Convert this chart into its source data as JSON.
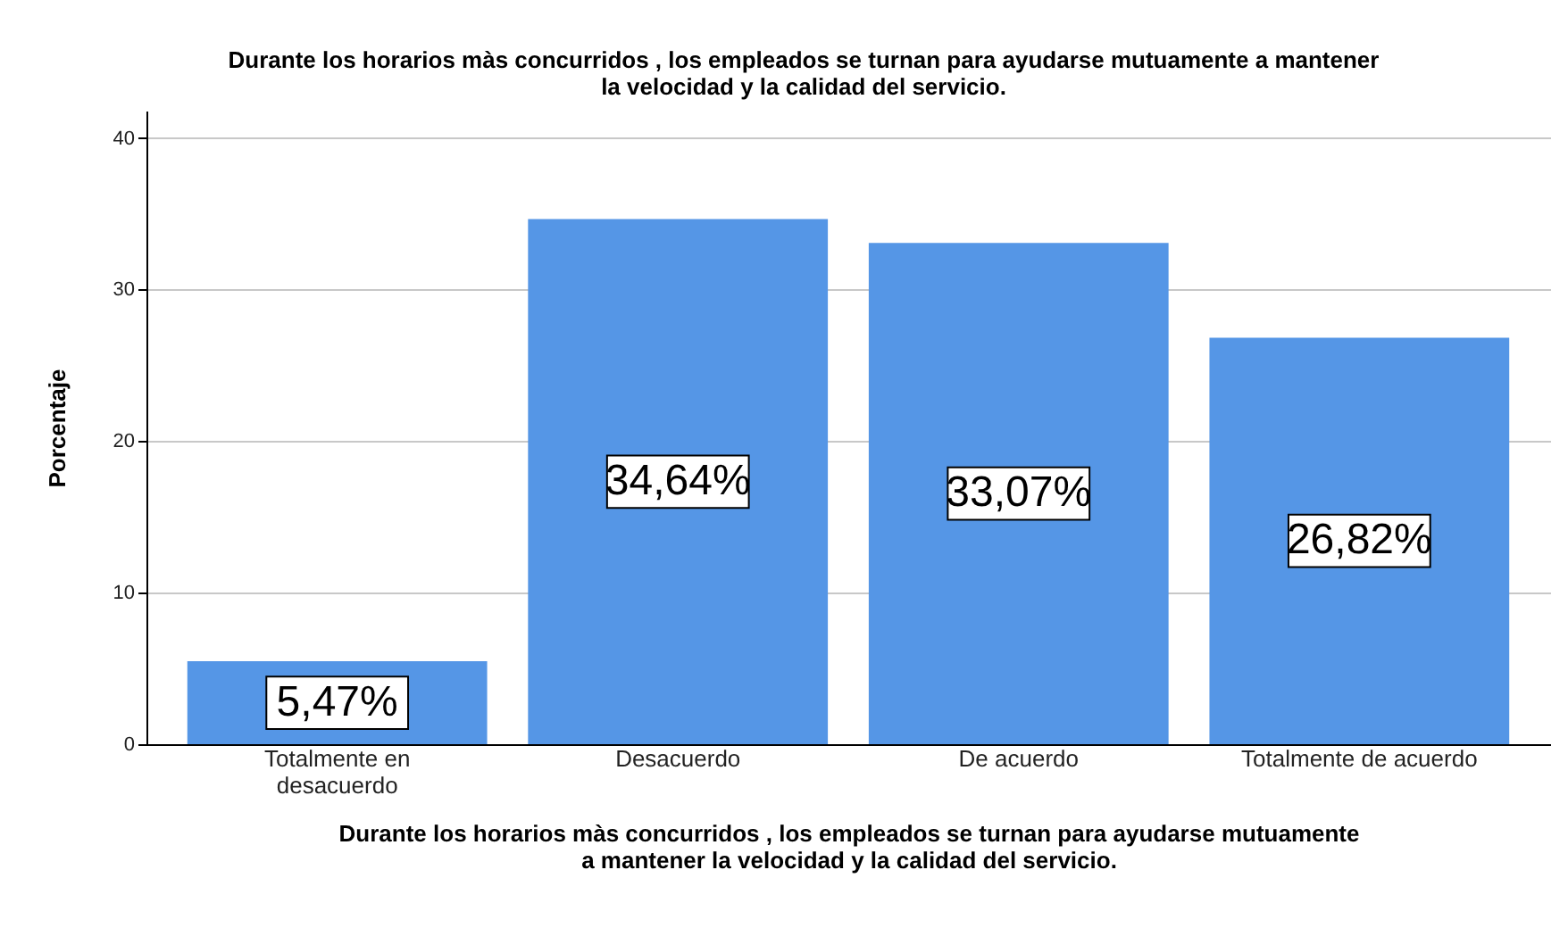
{
  "chart_data": {
    "type": "bar",
    "title": "Durante los horarios màs concurridos , los empleados se turnan para ayudarse mutuamente a mantener la velocidad y la calidad del servicio.",
    "xlabel": "Durante los horarios màs concurridos , los empleados se turnan para ayudarse mutuamente a mantener la velocidad y la calidad del servicio.",
    "ylabel": "Porcentaje",
    "categories": [
      "Totalmente en desacuerdo",
      "Desacuerdo",
      "De acuerdo",
      "Totalmente de acuerdo"
    ],
    "values": [
      5.47,
      34.64,
      33.07,
      26.82
    ],
    "value_labels": [
      "5,47%",
      "34,64%",
      "33,07%",
      "26,82%"
    ],
    "color": "#5596e6",
    "ylim": [
      0,
      41.8
    ],
    "yticks": [
      0,
      10,
      20,
      30,
      40
    ],
    "grid": "y"
  }
}
